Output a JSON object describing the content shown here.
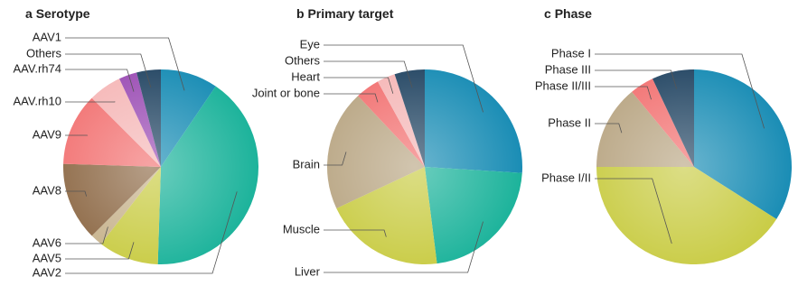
{
  "chart_data": [
    {
      "type": "pie",
      "panel": "a",
      "title": "Serotype",
      "categories": [
        "AAV1",
        "AAV2",
        "AAV5",
        "AAV6",
        "AAV8",
        "AAV9",
        "AAV.rh10",
        "AAV.rh74",
        "Others"
      ],
      "values": [
        9.5,
        41,
        10,
        2,
        13,
        12,
        5.5,
        3,
        4
      ],
      "colors": [
        "#1a8db5",
        "#1cb39b",
        "#c9cc45",
        "#c7b38d",
        "#8e6a47",
        "#f27373",
        "#f5b8b8",
        "#9c4fb5",
        "#264865"
      ]
    },
    {
      "type": "pie",
      "panel": "b",
      "title": "Primary target",
      "categories": [
        "Eye",
        "Liver",
        "Muscle",
        "Brain",
        "Joint or bone",
        "Heart",
        "Others"
      ],
      "values": [
        26,
        22,
        20,
        20,
        4,
        3,
        5
      ],
      "colors": [
        "#1a8db5",
        "#1cb39b",
        "#c9cc45",
        "#b9a684",
        "#f27373",
        "#f5b8b8",
        "#264865"
      ]
    },
    {
      "type": "pie",
      "panel": "c",
      "title": "Phase",
      "categories": [
        "Phase I",
        "Phase I/II",
        "Phase II",
        "Phase II/III",
        "Phase III"
      ],
      "values": [
        34,
        41,
        14,
        4,
        7
      ],
      "colors": [
        "#1a8db5",
        "#c9cc45",
        "#b9a684",
        "#f27373",
        "#264865"
      ]
    }
  ]
}
